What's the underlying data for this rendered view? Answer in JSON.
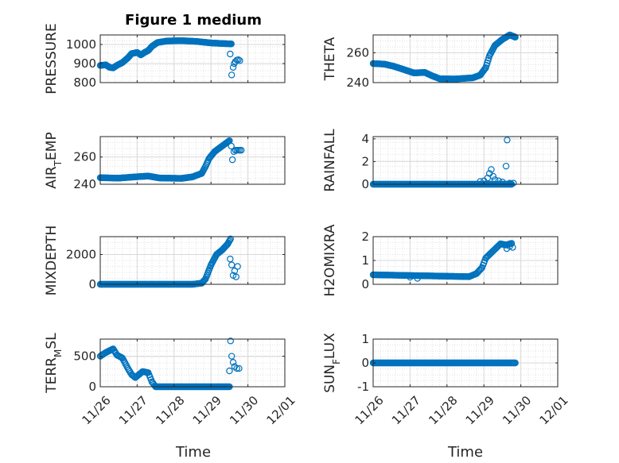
{
  "figure": {
    "title": "Figure 1 medium"
  },
  "style": {
    "marker_color": "#0072BD",
    "axis_color": "#262626",
    "grid_color": "#d9d9d9"
  },
  "chart_data": [
    {
      "type": "scatter",
      "ylabel_parts": [
        {
          "t": "PRESSURE"
        }
      ],
      "ylim": [
        800,
        1050
      ],
      "yticks": [
        800,
        900,
        1000
      ],
      "xlim": [
        0,
        5
      ],
      "xticks": [
        0,
        1,
        2,
        3,
        4,
        5
      ],
      "x_tick_labels": [
        "11/26",
        "11/27",
        "11/28",
        "11/29",
        "11/30",
        "12/01"
      ],
      "series": [
        {
          "trend": [
            [
              0,
              890
            ],
            [
              0.15,
              893
            ],
            [
              0.25,
              880
            ],
            [
              0.35,
              877
            ],
            [
              0.45,
              890
            ],
            [
              0.6,
              905
            ],
            [
              0.75,
              930
            ],
            [
              0.85,
              952
            ],
            [
              1.0,
              958
            ],
            [
              1.1,
              945
            ],
            [
              1.2,
              958
            ],
            [
              1.3,
              968
            ],
            [
              1.4,
              990
            ],
            [
              1.55,
              1010
            ],
            [
              1.8,
              1018
            ],
            [
              2.2,
              1020
            ],
            [
              2.6,
              1016
            ],
            [
              3.0,
              1008
            ],
            [
              3.3,
              1005
            ],
            [
              3.55,
              1003
            ]
          ],
          "step": 0.02,
          "extra": [
            [
              3.52,
              950
            ],
            [
              3.56,
              840
            ],
            [
              3.6,
              880
            ],
            [
              3.63,
              900
            ],
            [
              3.66,
              910
            ],
            [
              3.7,
              918
            ],
            [
              3.74,
              920
            ],
            [
              3.78,
              915
            ]
          ]
        }
      ]
    },
    {
      "type": "scatter",
      "ylabel_parts": [
        {
          "t": "THETA"
        }
      ],
      "ylim": [
        240,
        272
      ],
      "yticks": [
        240,
        260
      ],
      "xlim": [
        0,
        5
      ],
      "xticks": [
        0,
        1,
        2,
        3,
        4,
        5
      ],
      "x_tick_labels": [
        "11/26",
        "11/27",
        "11/28",
        "11/29",
        "11/30",
        "12/01"
      ],
      "series": [
        {
          "trend": [
            [
              0,
              252.8
            ],
            [
              0.3,
              252.4
            ],
            [
              0.55,
              251
            ],
            [
              0.8,
              249
            ],
            [
              1.1,
              246.5
            ],
            [
              1.4,
              246.8
            ],
            [
              1.6,
              244.5
            ],
            [
              1.8,
              242.6
            ],
            [
              2.2,
              242.4
            ],
            [
              2.7,
              243.2
            ],
            [
              2.9,
              245
            ],
            [
              3.05,
              250
            ],
            [
              3.15,
              258
            ],
            [
              3.3,
              265
            ],
            [
              3.5,
              269
            ],
            [
              3.7,
              272
            ],
            [
              3.85,
              270.5
            ]
          ],
          "step": 0.02,
          "extra": []
        }
      ]
    },
    {
      "type": "scatter",
      "ylabel_parts": [
        {
          "t": "AIR"
        },
        {
          "t": "T",
          "sub": true
        },
        {
          "t": "EMP"
        }
      ],
      "ylim": [
        240,
        275
      ],
      "yticks": [
        240,
        260
      ],
      "xlim": [
        0,
        5
      ],
      "xticks": [
        0,
        1,
        2,
        3,
        4,
        5
      ],
      "x_tick_labels": [
        "11/26",
        "11/27",
        "11/28",
        "11/29",
        "11/30",
        "12/01"
      ],
      "series": [
        {
          "trend": [
            [
              0,
              244.8
            ],
            [
              0.5,
              244.5
            ],
            [
              1.0,
              245.5
            ],
            [
              1.3,
              246
            ],
            [
              1.6,
              244.6
            ],
            [
              2.2,
              244.3
            ],
            [
              2.5,
              245.4
            ],
            [
              2.75,
              248
            ],
            [
              2.85,
              253
            ],
            [
              2.95,
              259
            ],
            [
              3.1,
              264
            ],
            [
              3.3,
              268
            ],
            [
              3.5,
              272
            ]
          ],
          "step": 0.02,
          "extra": [
            [
              3.55,
              268
            ],
            [
              3.58,
              258
            ],
            [
              3.62,
              264
            ],
            [
              3.66,
              265
            ],
            [
              3.7,
              265
            ],
            [
              3.74,
              265
            ],
            [
              3.78,
              265
            ],
            [
              3.82,
              265
            ]
          ]
        }
      ]
    },
    {
      "type": "scatter",
      "ylabel_parts": [
        {
          "t": "RAINFALL"
        }
      ],
      "ylim": [
        0,
        4.2
      ],
      "yticks": [
        0,
        2,
        4
      ],
      "xlim": [
        0,
        5
      ],
      "xticks": [
        0,
        1,
        2,
        3,
        4,
        5
      ],
      "x_tick_labels": [
        "11/26",
        "11/27",
        "11/28",
        "11/29",
        "11/30",
        "12/01"
      ],
      "series": [
        {
          "trend": [
            [
              0,
              0
            ],
            [
              3.75,
              0
            ]
          ],
          "step": 0.02,
          "extra": [
            [
              2.9,
              0.25
            ],
            [
              3.0,
              0.3
            ],
            [
              3.1,
              0.55
            ],
            [
              3.15,
              0.95
            ],
            [
              3.2,
              1.3
            ],
            [
              3.25,
              0.7
            ],
            [
              3.3,
              0.4
            ],
            [
              3.4,
              0.3
            ],
            [
              3.5,
              0.2
            ],
            [
              3.6,
              1.6
            ],
            [
              3.63,
              3.9
            ],
            [
              3.7,
              0.1
            ],
            [
              3.8,
              0.1
            ]
          ]
        }
      ]
    },
    {
      "type": "scatter",
      "ylabel_parts": [
        {
          "t": "MIXDEPTH"
        }
      ],
      "ylim": [
        0,
        3200
      ],
      "yticks": [
        0,
        2000
      ],
      "xlim": [
        0,
        5
      ],
      "xticks": [
        0,
        1,
        2,
        3,
        4,
        5
      ],
      "x_tick_labels": [
        "11/26",
        "11/27",
        "11/28",
        "11/29",
        "11/30",
        "12/01"
      ],
      "series": [
        {
          "trend": [
            [
              0,
              0
            ],
            [
              2.5,
              0
            ],
            [
              2.75,
              80
            ],
            [
              2.85,
              350
            ],
            [
              3.0,
              1300
            ],
            [
              3.15,
              2000
            ],
            [
              3.3,
              2300
            ],
            [
              3.45,
              2700
            ],
            [
              3.53,
              3050
            ]
          ],
          "step": 0.02,
          "extra": [
            [
              3.52,
              1700
            ],
            [
              3.56,
              1300
            ],
            [
              3.6,
              600
            ],
            [
              3.64,
              900
            ],
            [
              3.68,
              500
            ],
            [
              3.72,
              1200
            ]
          ]
        }
      ]
    },
    {
      "type": "scatter",
      "ylabel_parts": [
        {
          "t": "H2OMIXRA"
        }
      ],
      "ylim": [
        0,
        2
      ],
      "yticks": [
        0,
        1,
        2
      ],
      "xlim": [
        0,
        5
      ],
      "xticks": [
        0,
        1,
        2,
        3,
        4,
        5
      ],
      "x_tick_labels": [
        "11/26",
        "11/27",
        "11/28",
        "11/29",
        "11/30",
        "12/01"
      ],
      "series": [
        {
          "trend": [
            [
              0,
              0.4
            ],
            [
              2.6,
              0.32
            ],
            [
              2.8,
              0.45
            ],
            [
              2.95,
              0.7
            ],
            [
              3.05,
              1.1
            ],
            [
              3.25,
              1.4
            ],
            [
              3.45,
              1.7
            ],
            [
              3.6,
              1.65
            ],
            [
              3.75,
              1.72
            ]
          ],
          "step": 0.025,
          "extra": [
            [
              1.0,
              0.3
            ],
            [
              1.2,
              0.25
            ],
            [
              3.62,
              1.5
            ],
            [
              3.7,
              1.6
            ],
            [
              3.78,
              1.55
            ]
          ]
        }
      ]
    },
    {
      "type": "scatter",
      "ylabel_parts": [
        {
          "t": "TERR"
        },
        {
          "t": "M",
          "sub": true
        },
        {
          "t": "SL"
        }
      ],
      "ylim": [
        0,
        780
      ],
      "yticks": [
        0,
        500
      ],
      "xlim": [
        0,
        5
      ],
      "xticks": [
        0,
        1,
        2,
        3,
        4,
        5
      ],
      "x_tick_labels": [
        "11/26",
        "11/27",
        "11/28",
        "11/29",
        "11/30",
        "12/01"
      ],
      "series": [
        {
          "trend": [
            [
              0,
              500
            ],
            [
              0.15,
              560
            ],
            [
              0.35,
              620
            ],
            [
              0.45,
              520
            ],
            [
              0.6,
              470
            ],
            [
              0.75,
              300
            ],
            [
              0.85,
              200
            ],
            [
              0.95,
              150
            ],
            [
              1.05,
              200
            ],
            [
              1.15,
              250
            ],
            [
              1.3,
              230
            ],
            [
              1.4,
              80
            ],
            [
              1.5,
              0
            ],
            [
              3.5,
              0
            ]
          ],
          "step": 0.025,
          "extra": [
            [
              3.5,
              260
            ],
            [
              3.53,
              750
            ],
            [
              3.56,
              500
            ],
            [
              3.6,
              400
            ],
            [
              3.64,
              330
            ],
            [
              3.7,
              300
            ],
            [
              3.76,
              300
            ]
          ]
        }
      ]
    },
    {
      "type": "scatter",
      "ylabel_parts": [
        {
          "t": "SUN"
        },
        {
          "t": "F",
          "sub": true
        },
        {
          "t": "LUX"
        }
      ],
      "ylim": [
        -1,
        1
      ],
      "yticks": [
        -1,
        0,
        1
      ],
      "xlim": [
        0,
        5
      ],
      "xticks": [
        0,
        1,
        2,
        3,
        4,
        5
      ],
      "x_tick_labels": [
        "11/26",
        "11/27",
        "11/28",
        "11/29",
        "11/30",
        "12/01"
      ],
      "series": [
        {
          "trend": [
            [
              0,
              0
            ],
            [
              3.85,
              0
            ]
          ],
          "step": 0.02,
          "extra": []
        }
      ]
    }
  ],
  "x_axis_label": "Time"
}
